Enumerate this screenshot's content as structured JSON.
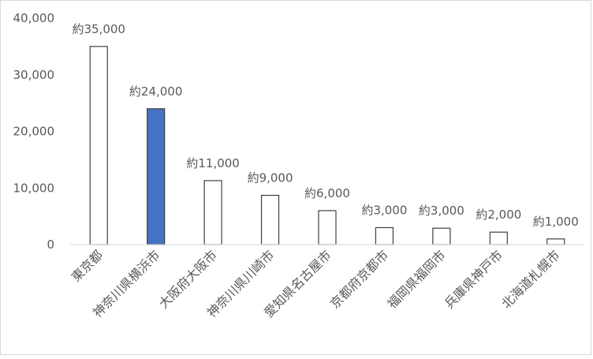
{
  "chart_data": {
    "type": "bar",
    "title": "",
    "xlabel": "",
    "ylabel": "",
    "ylim": [
      0,
      40000
    ],
    "yticks": [
      0,
      10000,
      20000,
      30000,
      40000
    ],
    "ytick_labels": [
      "0",
      "10,000",
      "20,000",
      "30,000",
      "40,000"
    ],
    "categories": [
      "東京都",
      "神奈川県横浜市",
      "大阪府大阪市",
      "神奈川県川崎市",
      "愛知県名古屋市",
      "京都府京都市",
      "福岡県福岡市",
      "兵庫県神戸市",
      "北海道札幌市"
    ],
    "values": [
      35000,
      24000,
      11300,
      8700,
      6000,
      3000,
      2900,
      2200,
      1000
    ],
    "data_labels": [
      "約35,000",
      "約24,000",
      "約11,000",
      "約9,000",
      "約6,000",
      "約3,000",
      "約3,000",
      "約2,000",
      "約1,000"
    ],
    "highlight_index": 1,
    "grid": false,
    "legend": "none",
    "colors": {
      "bar_fill": "#ffffff",
      "bar_stroke": "#404040",
      "highlight_fill": "#4472c4",
      "axis": "#d9d9d9",
      "text": "#595959"
    }
  }
}
